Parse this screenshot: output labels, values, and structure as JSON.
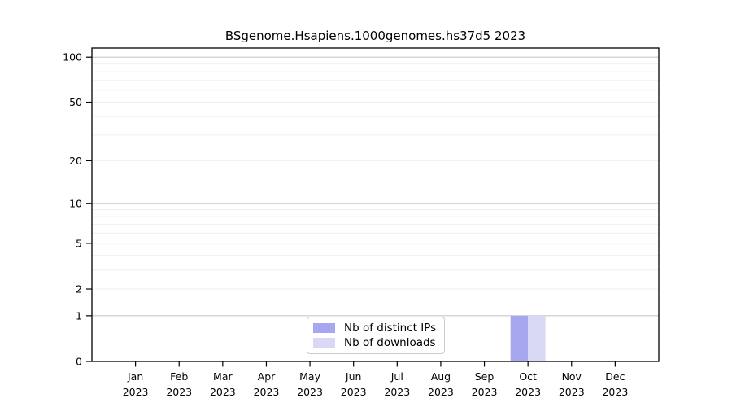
{
  "chart_data": {
    "type": "bar",
    "title": "BSgenome.Hsapiens.1000genomes.hs37d5 2023",
    "categories": [
      "Jan",
      "Feb",
      "Mar",
      "Apr",
      "May",
      "Jun",
      "Jul",
      "Aug",
      "Sep",
      "Oct",
      "Nov",
      "Dec"
    ],
    "x_tick_year": "2023",
    "series": [
      {
        "name": "Nb of distinct IPs",
        "color": "#a7a7f0",
        "values": [
          0,
          0,
          0,
          0,
          0,
          0,
          0,
          0,
          0,
          1,
          0,
          0
        ]
      },
      {
        "name": "Nb of downloads",
        "color": "#d9d9f6",
        "values": [
          0,
          0,
          0,
          0,
          0,
          0,
          0,
          0,
          0,
          1,
          0,
          0
        ]
      }
    ],
    "yscale": "log1p",
    "ylim": [
      0,
      115
    ],
    "ytick_values": [
      0,
      1,
      2,
      5,
      10,
      20,
      50,
      100
    ],
    "gridlines": {
      "major": [
        1,
        10,
        100
      ],
      "minor": [
        2,
        3,
        4,
        5,
        6,
        7,
        8,
        9,
        20,
        30,
        40,
        50,
        60,
        70,
        80,
        90
      ],
      "major_color": "#c9c9c9",
      "minor_color": "#f0f0f0"
    },
    "axis_color": "#000000",
    "grid": true,
    "legend_position": "bottom-center",
    "xlabel": "",
    "ylabel": ""
  }
}
